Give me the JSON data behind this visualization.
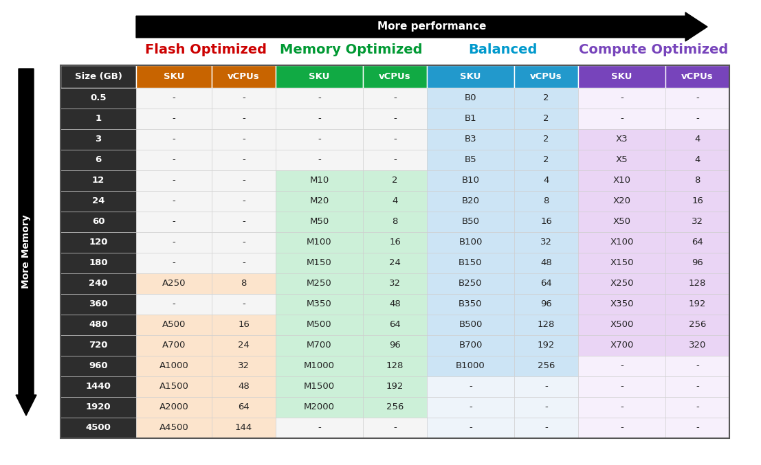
{
  "title_arrow": "More performance",
  "side_label": "More Memory",
  "category_labels": [
    "Flash Optimized",
    "Memory Optimized",
    "Balanced",
    "Compute Optimized"
  ],
  "category_colors": [
    "#cc0000",
    "#009933",
    "#0099cc",
    "#7744bb"
  ],
  "header_bg_colors": [
    "#c86400",
    "#c86400",
    "#11aa44",
    "#11aa44",
    "#2299cc",
    "#2299cc",
    "#7744bb",
    "#7744bb"
  ],
  "header_labels": [
    "SKU",
    "vCPUs",
    "SKU",
    "vCPUs",
    "SKU",
    "vCPUs",
    "SKU",
    "vCPUs"
  ],
  "size_col_bg": "#2d2d2d",
  "rows": [
    {
      "size": "0.5",
      "fo_sku": "-",
      "fo_vcpu": "-",
      "mo_sku": "-",
      "mo_vcpu": "-",
      "b_sku": "B0",
      "b_vcpu": "2",
      "co_sku": "-",
      "co_vcpu": "-"
    },
    {
      "size": "1",
      "fo_sku": "-",
      "fo_vcpu": "-",
      "mo_sku": "-",
      "mo_vcpu": "-",
      "b_sku": "B1",
      "b_vcpu": "2",
      "co_sku": "-",
      "co_vcpu": "-"
    },
    {
      "size": "3",
      "fo_sku": "-",
      "fo_vcpu": "-",
      "mo_sku": "-",
      "mo_vcpu": "-",
      "b_sku": "B3",
      "b_vcpu": "2",
      "co_sku": "X3",
      "co_vcpu": "4"
    },
    {
      "size": "6",
      "fo_sku": "-",
      "fo_vcpu": "-",
      "mo_sku": "-",
      "mo_vcpu": "-",
      "b_sku": "B5",
      "b_vcpu": "2",
      "co_sku": "X5",
      "co_vcpu": "4"
    },
    {
      "size": "12",
      "fo_sku": "-",
      "fo_vcpu": "-",
      "mo_sku": "M10",
      "mo_vcpu": "2",
      "b_sku": "B10",
      "b_vcpu": "4",
      "co_sku": "X10",
      "co_vcpu": "8"
    },
    {
      "size": "24",
      "fo_sku": "-",
      "fo_vcpu": "-",
      "mo_sku": "M20",
      "mo_vcpu": "4",
      "b_sku": "B20",
      "b_vcpu": "8",
      "co_sku": "X20",
      "co_vcpu": "16"
    },
    {
      "size": "60",
      "fo_sku": "-",
      "fo_vcpu": "-",
      "mo_sku": "M50",
      "mo_vcpu": "8",
      "b_sku": "B50",
      "b_vcpu": "16",
      "co_sku": "X50",
      "co_vcpu": "32"
    },
    {
      "size": "120",
      "fo_sku": "-",
      "fo_vcpu": "-",
      "mo_sku": "M100",
      "mo_vcpu": "16",
      "b_sku": "B100",
      "b_vcpu": "32",
      "co_sku": "X100",
      "co_vcpu": "64"
    },
    {
      "size": "180",
      "fo_sku": "-",
      "fo_vcpu": "-",
      "mo_sku": "M150",
      "mo_vcpu": "24",
      "b_sku": "B150",
      "b_vcpu": "48",
      "co_sku": "X150",
      "co_vcpu": "96"
    },
    {
      "size": "240",
      "fo_sku": "A250",
      "fo_vcpu": "8",
      "mo_sku": "M250",
      "mo_vcpu": "32",
      "b_sku": "B250",
      "b_vcpu": "64",
      "co_sku": "X250",
      "co_vcpu": "128"
    },
    {
      "size": "360",
      "fo_sku": "-",
      "fo_vcpu": "-",
      "mo_sku": "M350",
      "mo_vcpu": "48",
      "b_sku": "B350",
      "b_vcpu": "96",
      "co_sku": "X350",
      "co_vcpu": "192"
    },
    {
      "size": "480",
      "fo_sku": "A500",
      "fo_vcpu": "16",
      "mo_sku": "M500",
      "mo_vcpu": "64",
      "b_sku": "B500",
      "b_vcpu": "128",
      "co_sku": "X500",
      "co_vcpu": "256"
    },
    {
      "size": "720",
      "fo_sku": "A700",
      "fo_vcpu": "24",
      "mo_sku": "M700",
      "mo_vcpu": "96",
      "b_sku": "B700",
      "b_vcpu": "192",
      "co_sku": "X700",
      "co_vcpu": "320"
    },
    {
      "size": "960",
      "fo_sku": "A1000",
      "fo_vcpu": "32",
      "mo_sku": "M1000",
      "mo_vcpu": "128",
      "b_sku": "B1000",
      "b_vcpu": "256",
      "co_sku": "-",
      "co_vcpu": "-"
    },
    {
      "size": "1440",
      "fo_sku": "A1500",
      "fo_vcpu": "48",
      "mo_sku": "M1500",
      "mo_vcpu": "192",
      "b_sku": "-",
      "b_vcpu": "-",
      "co_sku": "-",
      "co_vcpu": "-"
    },
    {
      "size": "1920",
      "fo_sku": "A2000",
      "fo_vcpu": "64",
      "mo_sku": "M2000",
      "mo_vcpu": "256",
      "b_sku": "-",
      "b_vcpu": "-",
      "co_sku": "-",
      "co_vcpu": "-"
    },
    {
      "size": "4500",
      "fo_sku": "A4500",
      "fo_vcpu": "144",
      "mo_sku": "-",
      "mo_vcpu": "-",
      "b_sku": "-",
      "b_vcpu": "-",
      "co_sku": "-",
      "co_vcpu": "-"
    }
  ],
  "fo_bg": "#fce4cc",
  "fo_empty_bg": "#f5f5f5",
  "mo_bg": "#ccf0d8",
  "mo_empty_bg": "#f5f5f5",
  "b_bg": "#cce4f5",
  "b_empty_bg": "#eef4fa",
  "co_bg": "#ead5f5",
  "co_empty_bg": "#f7f0fc"
}
